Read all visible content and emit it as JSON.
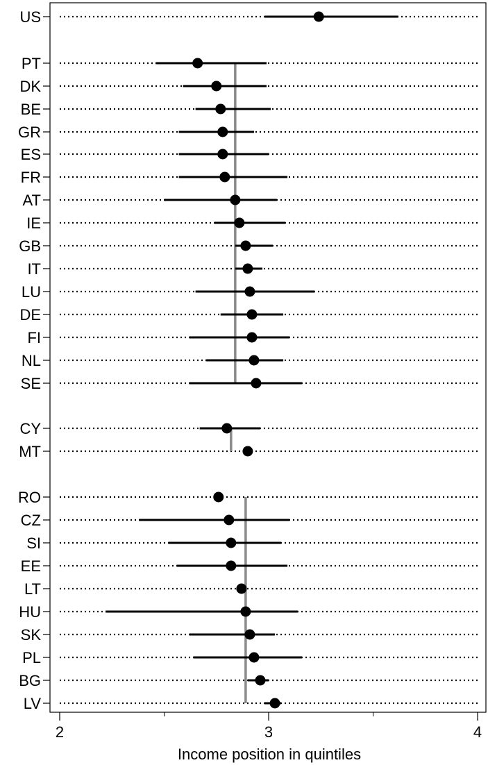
{
  "chart_data": {
    "type": "scatter",
    "xlabel": "Income position in quintiles",
    "xlim": [
      2,
      4
    ],
    "xticks": [
      {
        "value": 2,
        "label": "2"
      },
      {
        "value": 3,
        "label": "3"
      },
      {
        "value": 4,
        "label": "4"
      }
    ],
    "minor_xticks": [
      2.5,
      3.5
    ],
    "rows": [
      {
        "label": "US",
        "value": 3.24,
        "lo": 2.98,
        "hi": 3.62
      },
      {
        "label": "PT",
        "value": 2.66,
        "lo": 2.46,
        "hi": 2.99
      },
      {
        "label": "DK",
        "value": 2.75,
        "lo": 2.59,
        "hi": 2.99
      },
      {
        "label": "BE",
        "value": 2.77,
        "lo": 2.65,
        "hi": 3.01
      },
      {
        "label": "GR",
        "value": 2.78,
        "lo": 2.57,
        "hi": 2.93
      },
      {
        "label": "ES",
        "value": 2.78,
        "lo": 2.57,
        "hi": 3.0
      },
      {
        "label": "FR",
        "value": 2.79,
        "lo": 2.57,
        "hi": 3.09
      },
      {
        "label": "AT",
        "value": 2.84,
        "lo": 2.5,
        "hi": 3.04
      },
      {
        "label": "IE",
        "value": 2.86,
        "lo": 2.74,
        "hi": 3.08
      },
      {
        "label": "GB",
        "value": 2.89,
        "lo": 2.84,
        "hi": 3.02
      },
      {
        "label": "IT",
        "value": 2.9,
        "lo": 2.84,
        "hi": 2.97
      },
      {
        "label": "LU",
        "value": 2.91,
        "lo": 2.65,
        "hi": 3.22
      },
      {
        "label": "DE",
        "value": 2.92,
        "lo": 2.77,
        "hi": 3.07
      },
      {
        "label": "FI",
        "value": 2.92,
        "lo": 2.62,
        "hi": 3.1
      },
      {
        "label": "NL",
        "value": 2.93,
        "lo": 2.7,
        "hi": 3.07
      },
      {
        "label": "SE",
        "value": 2.94,
        "lo": 2.62,
        "hi": 3.16
      },
      {
        "label": "CY",
        "value": 2.8,
        "lo": 2.67,
        "hi": 2.96
      },
      {
        "label": "MT",
        "value": 2.9
      },
      {
        "label": "RO",
        "value": 2.76
      },
      {
        "label": "CZ",
        "value": 2.81,
        "lo": 2.38,
        "hi": 3.1
      },
      {
        "label": "SI",
        "value": 2.82,
        "lo": 2.52,
        "hi": 3.06
      },
      {
        "label": "EE",
        "value": 2.82,
        "lo": 2.56,
        "hi": 3.09
      },
      {
        "label": "LT",
        "value": 2.87
      },
      {
        "label": "HU",
        "value": 2.89,
        "lo": 2.22,
        "hi": 3.14
      },
      {
        "label": "SK",
        "value": 2.91,
        "lo": 2.62,
        "hi": 3.03
      },
      {
        "label": "PL",
        "value": 2.93,
        "lo": 2.64,
        "hi": 3.16
      },
      {
        "label": "BG",
        "value": 2.96,
        "lo": 2.9,
        "hi": 3.0
      },
      {
        "label": "LV",
        "value": 3.03,
        "lo": 2.98,
        "hi": 3.06
      }
    ],
    "group_means": [
      {
        "value": 2.84,
        "from": "PT",
        "to": "SE"
      },
      {
        "value": 2.82,
        "from": "CY",
        "to": "MT"
      },
      {
        "value": 2.89,
        "from": "RO",
        "to": "LV"
      }
    ],
    "grid": "dotted row guides",
    "legend": "none"
  }
}
